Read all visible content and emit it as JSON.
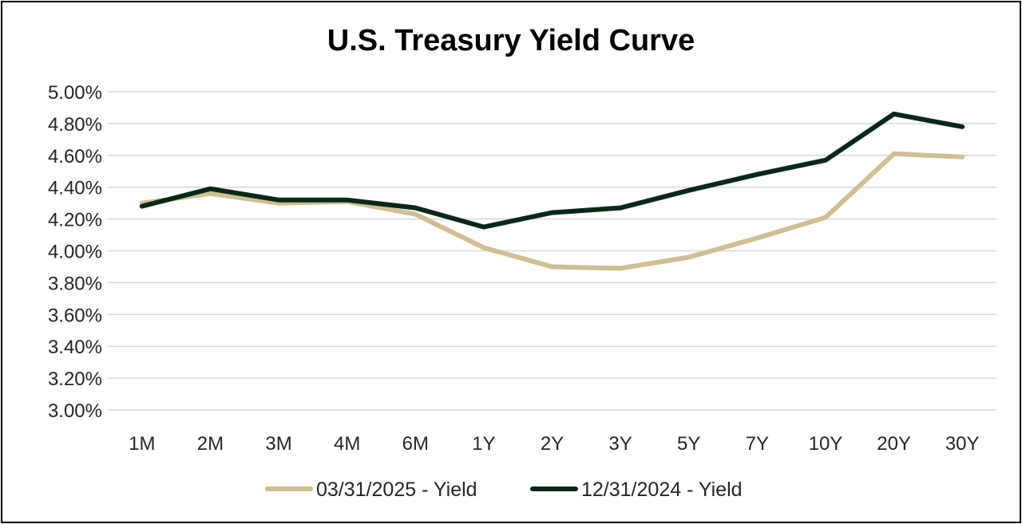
{
  "chart_data": {
    "type": "line",
    "title": "U.S. Treasury Yield Curve",
    "xlabel": "",
    "ylabel": "",
    "categories": [
      "1M",
      "2M",
      "3M",
      "4M",
      "6M",
      "1Y",
      "2Y",
      "3Y",
      "5Y",
      "7Y",
      "10Y",
      "20Y",
      "30Y"
    ],
    "yticks": [
      "3.00%",
      "3.20%",
      "3.40%",
      "3.60%",
      "3.80%",
      "4.00%",
      "4.20%",
      "4.40%",
      "4.60%",
      "4.80%",
      "5.00%"
    ],
    "ylim": [
      3.0,
      5.0
    ],
    "grid": true,
    "legend_position": "bottom",
    "series": [
      {
        "name": "03/31/2025 - Yield",
        "color": "#cfbf93",
        "values": [
          4.3,
          4.36,
          4.3,
          4.31,
          4.23,
          4.02,
          3.9,
          3.89,
          3.96,
          4.08,
          4.21,
          4.61,
          4.59
        ]
      },
      {
        "name": "12/31/2024 - Yield",
        "color": "#0a2818",
        "values": [
          4.28,
          4.39,
          4.32,
          4.32,
          4.27,
          4.15,
          4.24,
          4.27,
          4.38,
          4.48,
          4.57,
          4.86,
          4.78
        ]
      }
    ]
  }
}
